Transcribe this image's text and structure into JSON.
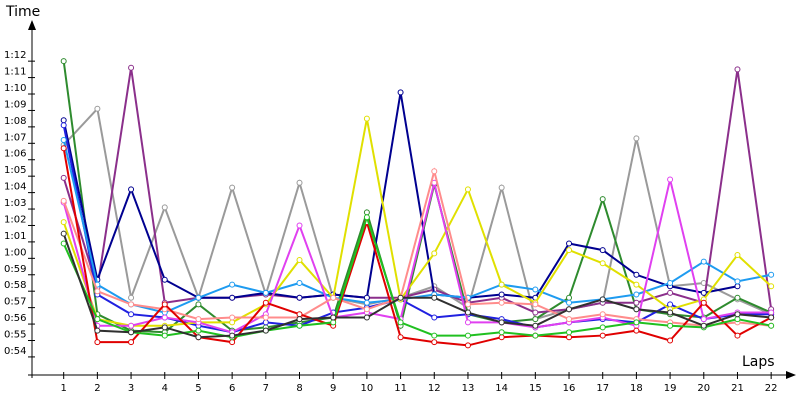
{
  "chart_data": {
    "type": "line",
    "y_label": "Time",
    "x_label": "Laps",
    "x": [
      1,
      2,
      3,
      4,
      5,
      6,
      7,
      8,
      9,
      10,
      11,
      12,
      13,
      14,
      15,
      16,
      17,
      18,
      19,
      20,
      21,
      22
    ],
    "xlim": [
      0,
      22.5
    ],
    "xticks": [
      1,
      2,
      3,
      4,
      5,
      6,
      7,
      8,
      9,
      10,
      11,
      12,
      13,
      14,
      15,
      16,
      17,
      18,
      19,
      20,
      21,
      22
    ],
    "ylim": [
      52.9,
      74.2
    ],
    "yticks": [
      {
        "value": 54,
        "label": "0:54"
      },
      {
        "value": 55,
        "label": "0:55"
      },
      {
        "value": 56,
        "label": "0:56"
      },
      {
        "value": 57,
        "label": "0:57"
      },
      {
        "value": 58,
        "label": "0:58"
      },
      {
        "value": 59,
        "label": "0:59"
      },
      {
        "value": 60,
        "label": "1:00"
      },
      {
        "value": 61,
        "label": "1:01"
      },
      {
        "value": 62,
        "label": "1:02"
      },
      {
        "value": 63,
        "label": "1:03"
      },
      {
        "value": 64,
        "label": "1:04"
      },
      {
        "value": 65,
        "label": "1:05"
      },
      {
        "value": 66,
        "label": "1:06"
      },
      {
        "value": 67,
        "label": "1:07"
      },
      {
        "value": 68,
        "label": "1:08"
      },
      {
        "value": 69,
        "label": "1:09"
      },
      {
        "value": 70,
        "label": "1:10"
      },
      {
        "value": 71,
        "label": "1:11"
      },
      {
        "value": 72,
        "label": "1:12"
      }
    ],
    "series": [
      {
        "color": "#9a9a9a",
        "values": [
          66.9,
          69.1,
          57.6,
          63.1,
          57.6,
          64.3,
          57.8,
          64.6,
          57.6,
          57.2,
          57.6,
          58.3,
          57.0,
          64.3,
          56.3,
          56.9,
          57.3,
          67.3,
          58.3,
          58.5,
          57.5,
          56.6
        ]
      },
      {
        "color": "#2e8b2e",
        "values": [
          72.0,
          56.6,
          55.6,
          55.5,
          57.2,
          55.6,
          55.8,
          56.1,
          56.4,
          62.8,
          55.9,
          64.5,
          56.6,
          56.1,
          56.3,
          57.6,
          63.6,
          56.9,
          56.6,
          56.4,
          57.6,
          56.7
        ]
      },
      {
        "color": "#8b2f8b",
        "values": [
          64.9,
          58.2,
          71.6,
          57.3,
          57.6,
          57.6,
          57.8,
          57.6,
          57.8,
          57.6,
          57.6,
          58.1,
          57.3,
          57.6,
          56.7,
          56.9,
          57.3,
          57.3,
          57.9,
          57.3,
          71.5,
          56.9
        ]
      },
      {
        "color": "#000090",
        "values": [
          68.4,
          58.7,
          64.2,
          58.7,
          57.6,
          57.6,
          57.9,
          57.6,
          57.8,
          57.6,
          70.1,
          57.8,
          57.6,
          57.8,
          57.6,
          60.9,
          60.5,
          59.0,
          58.3,
          57.9,
          58.3,
          null
        ]
      },
      {
        "color": "#2020e0",
        "values": [
          68.1,
          57.8,
          56.6,
          56.4,
          55.9,
          55.5,
          56.1,
          55.9,
          56.7,
          57.0,
          57.5,
          56.4,
          56.6,
          56.3,
          55.8,
          56.1,
          56.3,
          56.1,
          57.2,
          56.3,
          56.6,
          56.6
        ]
      },
      {
        "color": "#1e9bf0",
        "values": [
          67.2,
          58.4,
          57.2,
          56.7,
          57.6,
          58.4,
          57.9,
          58.5,
          57.6,
          57.3,
          57.5,
          57.8,
          57.6,
          58.4,
          58.1,
          57.3,
          57.5,
          57.8,
          58.5,
          59.8,
          58.6,
          59.0
        ]
      },
      {
        "color": "#e0e000",
        "values": [
          62.2,
          56.3,
          55.9,
          55.9,
          56.1,
          56.1,
          57.2,
          59.9,
          57.6,
          68.5,
          57.5,
          60.3,
          64.2,
          58.4,
          57.3,
          60.5,
          59.7,
          58.4,
          56.9,
          57.5,
          60.2,
          58.3
        ]
      },
      {
        "color": "#e040f0",
        "values": [
          63.4,
          55.9,
          55.9,
          56.4,
          56.1,
          55.5,
          56.6,
          62.0,
          56.4,
          56.7,
          56.3,
          64.6,
          56.1,
          56.1,
          55.8,
          56.1,
          56.4,
          55.9,
          64.8,
          56.3,
          56.7,
          56.7
        ]
      },
      {
        "color": "#ff8c8c",
        "values": [
          63.5,
          58.0,
          57.2,
          56.9,
          56.3,
          56.4,
          56.4,
          56.4,
          57.6,
          56.9,
          57.6,
          65.3,
          57.2,
          57.3,
          57.2,
          56.3,
          56.6,
          56.3,
          56.1,
          55.9,
          56.1,
          55.9
        ]
      },
      {
        "color": "#e00000",
        "values": [
          66.7,
          54.9,
          54.9,
          57.2,
          55.2,
          54.9,
          57.3,
          56.6,
          55.9,
          62.2,
          55.2,
          54.9,
          54.7,
          55.2,
          55.3,
          55.2,
          55.3,
          55.6,
          55.0,
          57.3,
          55.3,
          56.4
        ]
      },
      {
        "color": "#20c020",
        "values": [
          60.9,
          56.3,
          55.5,
          55.3,
          55.6,
          55.2,
          55.6,
          55.9,
          56.1,
          62.5,
          56.1,
          55.3,
          55.3,
          55.5,
          55.3,
          55.5,
          55.8,
          56.1,
          55.9,
          55.8,
          56.3,
          55.9
        ]
      },
      {
        "color": "#303030",
        "values": [
          61.5,
          55.6,
          55.5,
          55.8,
          55.2,
          55.3,
          55.6,
          56.3,
          56.4,
          56.4,
          57.6,
          57.6,
          56.7,
          56.1,
          55.9,
          56.9,
          57.5,
          56.9,
          56.7,
          55.9,
          56.6,
          56.4
        ]
      }
    ]
  }
}
